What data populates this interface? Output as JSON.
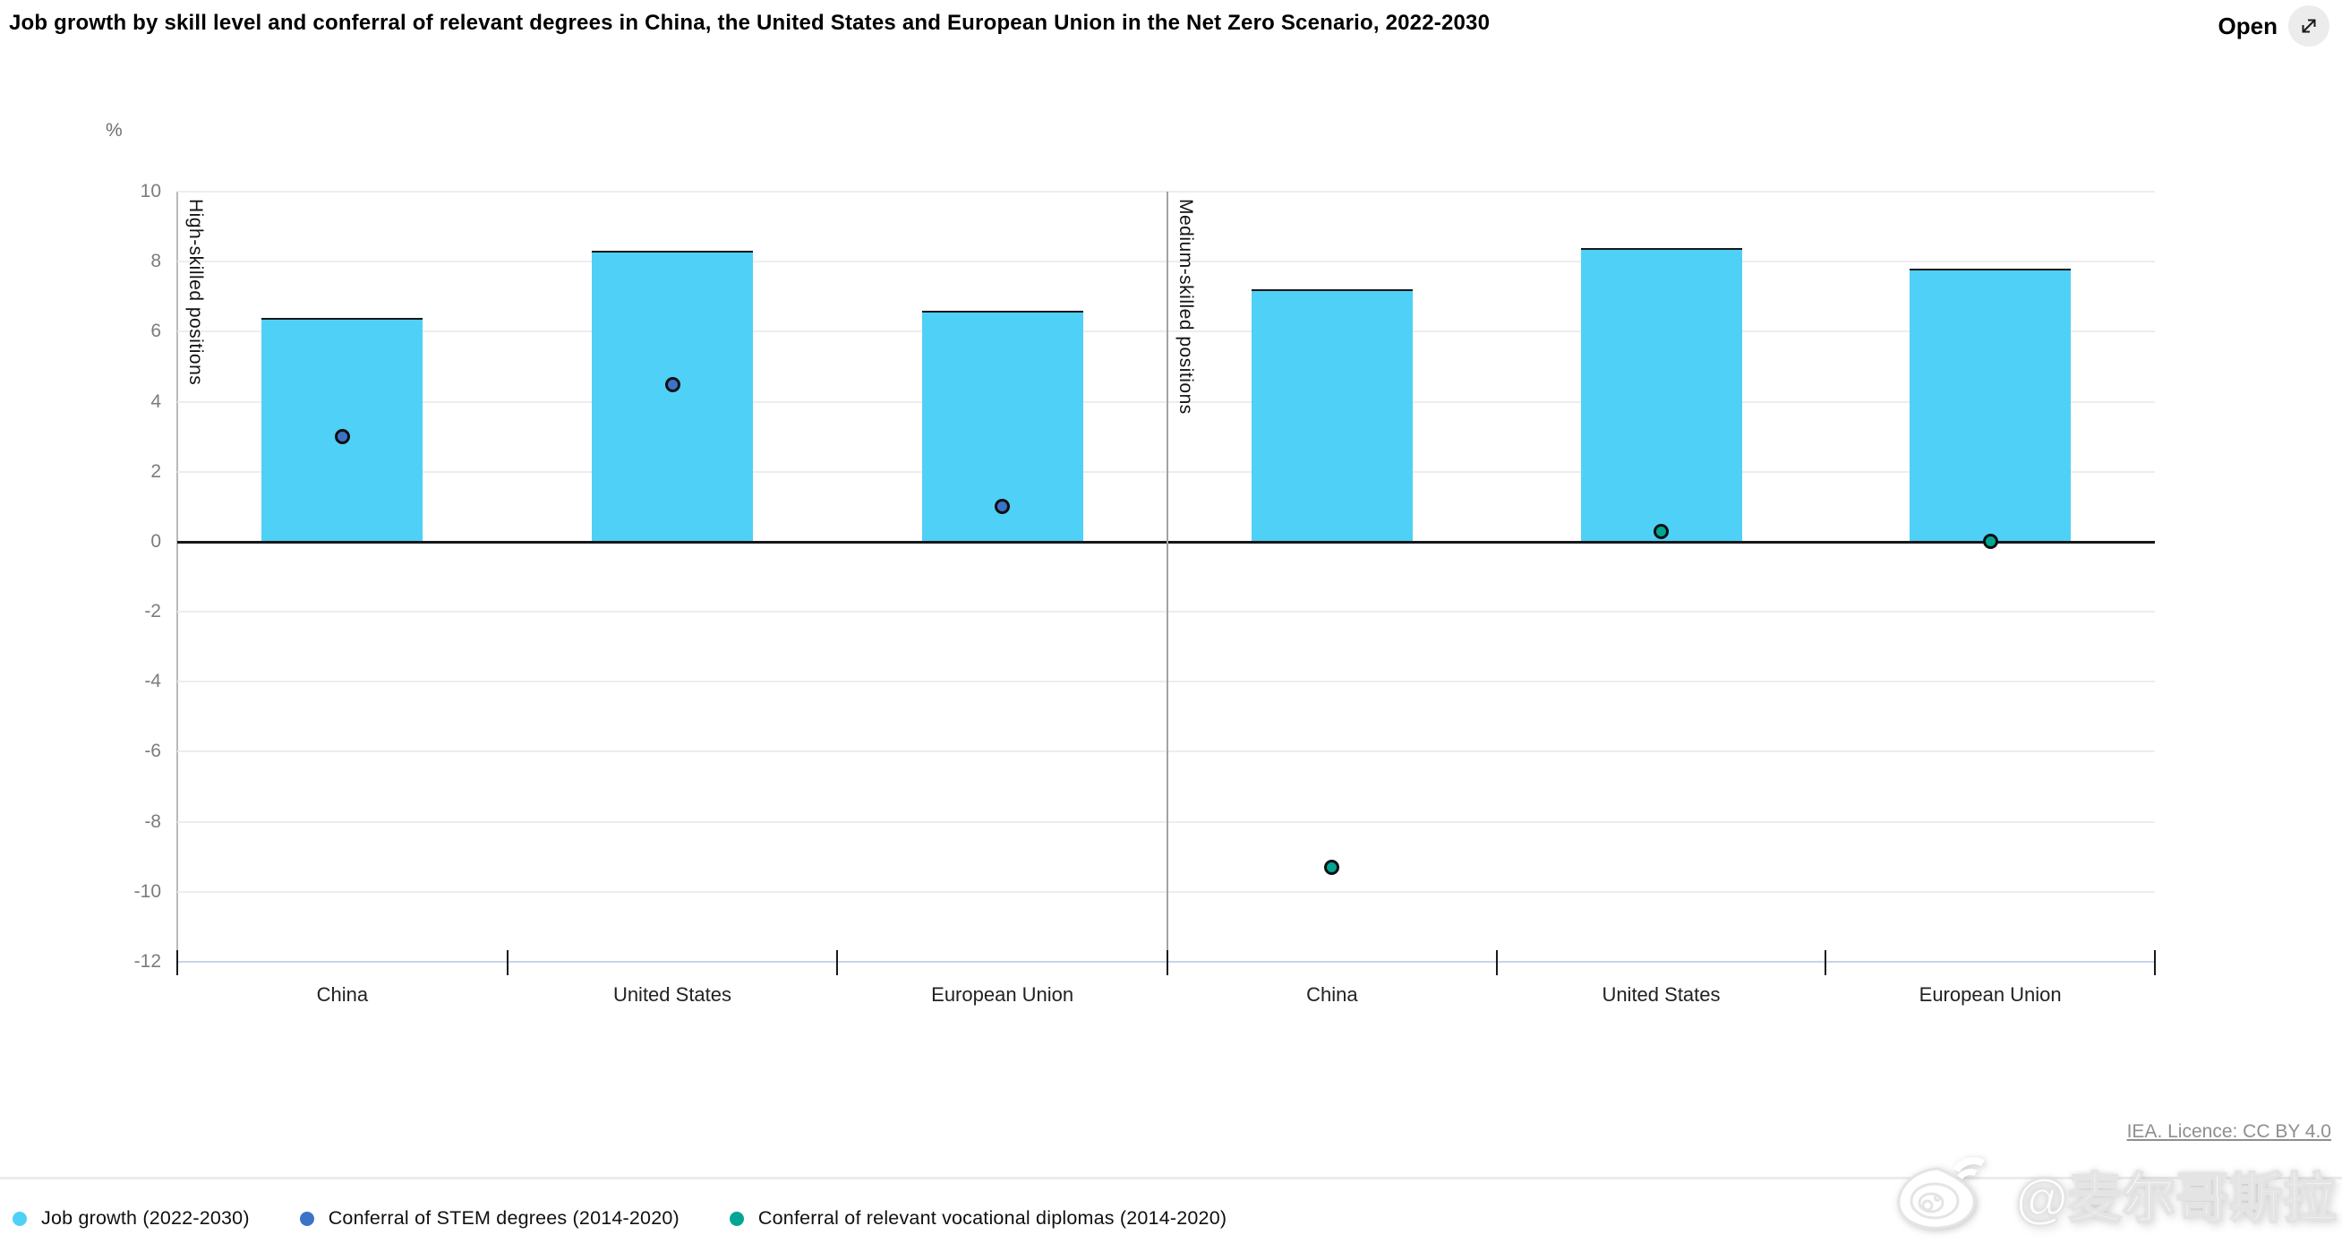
{
  "header": {
    "title": "Job growth by skill level and conferral of relevant degrees in China, the United States and European Union in the Net Zero Scenario, 2022-2030",
    "open_label": "Open",
    "open_icon": "expand-arrows-icon"
  },
  "chart_data": {
    "type": "bar",
    "title": "Job growth by skill level and conferral of relevant degrees in China, the United States and European Union in the Net Zero Scenario, 2022-2030",
    "unit_label": "%",
    "ylabel": "%",
    "xlabel": "",
    "ylim": [
      -12,
      10
    ],
    "ytick_step": 2,
    "grid": true,
    "zero_line": true,
    "panels": [
      {
        "label": "High-skilled positions",
        "categories": [
          "China",
          "United States",
          "European Union"
        ],
        "series": [
          {
            "name": "Job growth (2022-2030)",
            "type": "bar",
            "color": "#4fd0f6",
            "values": [
              6.4,
              8.3,
              6.6
            ]
          },
          {
            "name": "Conferral of STEM degrees (2014-2020)",
            "type": "point",
            "color": "#3b73c9",
            "values": [
              3.0,
              4.5,
              1.0
            ]
          }
        ]
      },
      {
        "label": "Medium-skilled positions",
        "categories": [
          "China",
          "United States",
          "European Union"
        ],
        "series": [
          {
            "name": "Job growth (2022-2030)",
            "type": "bar",
            "color": "#4fd0f6",
            "values": [
              7.2,
              8.4,
              7.8
            ]
          },
          {
            "name": "Conferral of relevant vocational diplomas (2014-2020)",
            "type": "point",
            "color": "#00a693",
            "values": [
              -9.3,
              0.3,
              0.0
            ]
          }
        ]
      }
    ],
    "legend_position": "bottom-left"
  },
  "legend": {
    "items": [
      {
        "label": "Job growth (2022-2030)",
        "color": "#4fd0f6",
        "marker": "circle"
      },
      {
        "label": "Conferral of STEM degrees (2014-2020)",
        "color": "#3b73c9",
        "marker": "circle"
      },
      {
        "label": "Conferral of relevant vocational diplomas (2014-2020)",
        "color": "#00a693",
        "marker": "circle"
      }
    ]
  },
  "footer": {
    "licence": "IEA. Licence: CC BY 4.0"
  },
  "watermark": {
    "icon": "weibo-icon",
    "text": "@麦尔哥斯拉"
  },
  "colors": {
    "bar_fill": "#4fd0f6",
    "stem_dot": "#3b73c9",
    "vocational_dot": "#00a693",
    "gridline": "#ededed",
    "zero_line": "#15181b",
    "bottom_line": "#c9d3e8",
    "axis_text": "#7c7c7c",
    "title_text": "#000000"
  }
}
